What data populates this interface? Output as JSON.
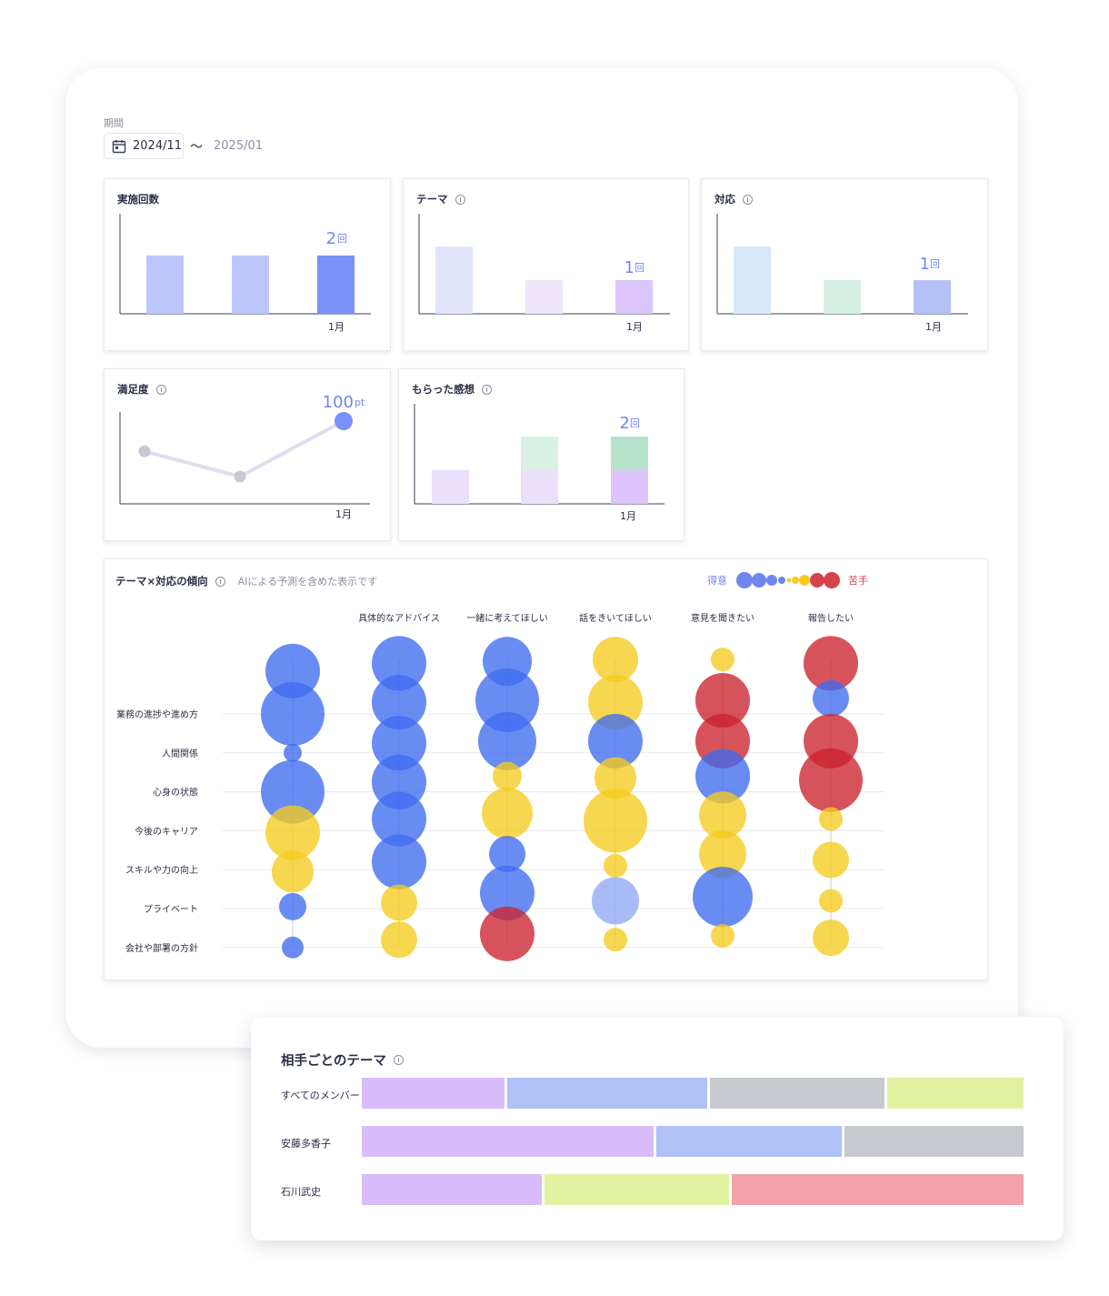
{
  "period": {
    "label": "期間",
    "start": "2024/11",
    "separator": "〜",
    "end": "2025/01",
    "calendar_icon": "calendar-icon"
  },
  "panels": {
    "count": {
      "title": "実施回数",
      "value_number": "2",
      "value_unit": "回",
      "xtick": "1月",
      "chart_data": {
        "type": "bar",
        "values": [
          1.3,
          1.3,
          1.3
        ],
        "highlight_index": 2,
        "colors": [
          "#bcc6fb",
          "#bcc6fb",
          "#7a91fa"
        ]
      }
    },
    "theme": {
      "title": "テーマ",
      "value_number": "1",
      "value_unit": "回",
      "xtick": "1月",
      "chart_data": {
        "type": "bar",
        "values": [
          1.5,
          0.75,
          0.75
        ],
        "colors": [
          "#e2e4f9",
          "#efe6fc",
          "#dcc5fb"
        ]
      }
    },
    "response": {
      "title": "対応",
      "value_number": "1",
      "value_unit": "回",
      "xtick": "1月",
      "chart_data": {
        "type": "bar",
        "values": [
          1.5,
          0.75,
          0.75
        ],
        "colors": [
          "#d6e8f9",
          "#d7f0e4",
          "#b4c1f7"
        ]
      }
    },
    "satisfaction": {
      "title": "満足度",
      "value_number": "100",
      "value_unit": "pt",
      "xtick": "1月",
      "chart_data": {
        "type": "line",
        "values": [
          88,
          78,
          100
        ],
        "ylim": [
          60,
          110
        ],
        "colors": [
          "#c7c9d3",
          "#c7c9d3",
          "#7a91fa"
        ]
      }
    },
    "feedback": {
      "title": "もらった感想",
      "value_number": "2",
      "value_unit": "回",
      "xtick": "1月",
      "chart_data": {
        "type": "bar",
        "stacked": true,
        "series": [
          {
            "values": [
              1,
              1,
              1
            ],
            "colors": [
              "#ecdffb",
              "#ecdffb",
              "#dcc3fb"
            ]
          },
          {
            "values": [
              0,
              1,
              1
            ],
            "colors": [
              "#d9f0e4",
              "#d9f0e4",
              "#b6e2cc"
            ]
          }
        ]
      }
    }
  },
  "tendency": {
    "title": "テーマ×対応の傾向",
    "note": "AIによる予測を含めた表示です",
    "legend_good": "得意",
    "legend_bad": "苦手",
    "legend_good_color": "#6f86f0",
    "legend_bad_color": "#d4434b",
    "rows": [
      "業務の進捗や進め方",
      "人間関係",
      "心身の状態",
      "今後のキャリア",
      "スキルや力の向上",
      "プライベート",
      "会社や部署の方針"
    ],
    "columns": [
      "",
      "具体的なアドバイス",
      "一緒に考えてほしい",
      "話をきいてほしい",
      "意見を聞きたい",
      "報告したい"
    ],
    "chart_data": {
      "type": "scatter",
      "colors": {
        "blue": "#3f6cf0",
        "lightblue": "#8fa8f3",
        "yellow": "#f5cc1e",
        "red": "#cc232e"
      },
      "columns": [
        [
          {
            "pos": -1.1,
            "size": 30,
            "color": "blue"
          },
          {
            "pos": 0,
            "size": 35,
            "color": "blue"
          },
          {
            "pos": 1,
            "size": 10,
            "color": "blue"
          },
          {
            "pos": 2,
            "size": 35,
            "color": "blue"
          },
          {
            "pos": 3.05,
            "size": 30,
            "color": "yellow"
          },
          {
            "pos": 4.05,
            "size": 23,
            "color": "yellow"
          },
          {
            "pos": 4.95,
            "size": 15,
            "color": "blue"
          },
          {
            "pos": 6,
            "size": 12,
            "color": "blue"
          }
        ],
        [
          {
            "pos": -1.3,
            "size": 30,
            "color": "blue"
          },
          {
            "pos": -0.3,
            "size": 30,
            "color": "blue"
          },
          {
            "pos": 0.75,
            "size": 30,
            "color": "blue"
          },
          {
            "pos": 1.75,
            "size": 30,
            "color": "blue"
          },
          {
            "pos": 2.7,
            "size": 30,
            "color": "blue"
          },
          {
            "pos": 3.8,
            "size": 30,
            "color": "blue"
          },
          {
            "pos": 4.85,
            "size": 20,
            "color": "yellow"
          },
          {
            "pos": 5.8,
            "size": 20,
            "color": "yellow"
          }
        ],
        [
          {
            "pos": -1.35,
            "size": 27,
            "color": "blue"
          },
          {
            "pos": -0.35,
            "size": 35,
            "color": "blue"
          },
          {
            "pos": 0.7,
            "size": 32,
            "color": "blue"
          },
          {
            "pos": 1.6,
            "size": 16,
            "color": "yellow"
          },
          {
            "pos": 2.55,
            "size": 28,
            "color": "yellow"
          },
          {
            "pos": 3.6,
            "size": 20,
            "color": "blue"
          },
          {
            "pos": 4.6,
            "size": 30,
            "color": "blue"
          },
          {
            "pos": 5.65,
            "size": 30,
            "color": "red"
          }
        ],
        [
          {
            "pos": -1.4,
            "size": 25,
            "color": "yellow"
          },
          {
            "pos": -0.3,
            "size": 30,
            "color": "yellow"
          },
          {
            "pos": 0.7,
            "size": 30,
            "color": "blue"
          },
          {
            "pos": 1.65,
            "size": 23,
            "color": "yellow"
          },
          {
            "pos": 2.75,
            "size": 35,
            "color": "yellow"
          },
          {
            "pos": 3.9,
            "size": 13,
            "color": "yellow"
          },
          {
            "pos": 4.8,
            "size": 26,
            "color": "lightblue"
          },
          {
            "pos": 5.8,
            "size": 13,
            "color": "yellow"
          }
        ],
        [
          {
            "pos": -1.4,
            "size": 13,
            "color": "yellow"
          },
          {
            "pos": -0.35,
            "size": 30,
            "color": "red"
          },
          {
            "pos": 0.7,
            "size": 30,
            "color": "red"
          },
          {
            "pos": 1.6,
            "size": 30,
            "color": "blue"
          },
          {
            "pos": 2.6,
            "size": 26,
            "color": "yellow"
          },
          {
            "pos": 3.6,
            "size": 26,
            "color": "yellow"
          },
          {
            "pos": 4.7,
            "size": 33,
            "color": "blue"
          },
          {
            "pos": 5.7,
            "size": 13,
            "color": "yellow"
          }
        ],
        [
          {
            "pos": -1.3,
            "size": 30,
            "color": "red"
          },
          {
            "pos": -0.4,
            "size": 20,
            "color": "blue"
          },
          {
            "pos": 0.7,
            "size": 30,
            "color": "red"
          },
          {
            "pos": 1.7,
            "size": 35,
            "color": "red"
          },
          {
            "pos": 2.7,
            "size": 13,
            "color": "yellow"
          },
          {
            "pos": 3.75,
            "size": 20,
            "color": "yellow"
          },
          {
            "pos": 4.8,
            "size": 13,
            "color": "yellow"
          },
          {
            "pos": 5.75,
            "size": 20,
            "color": "yellow"
          }
        ]
      ]
    }
  },
  "partner_themes": {
    "title": "相手ごとのテーマ",
    "chart_data": {
      "type": "bar",
      "stacked": true,
      "rows": [
        {
          "label": "すべてのメンバー",
          "values": [
            22,
            30.5,
            26.8,
            20.5
          ],
          "colors": [
            "#d9bcfb",
            "#b0c1f7",
            "#c7c9d1",
            "#e1f1a0"
          ]
        },
        {
          "label": "安藤多香子",
          "values": [
            44.5,
            28.5,
            27
          ],
          "colors": [
            "#d9bcfb",
            "#b0c1f7",
            "#c7c9d1"
          ]
        },
        {
          "label": "石川武史",
          "values": [
            27.6,
            28.3,
            44.1
          ],
          "colors": [
            "#d9bcfb",
            "#e1f1a0",
            "#f4a1aa"
          ]
        }
      ]
    }
  }
}
